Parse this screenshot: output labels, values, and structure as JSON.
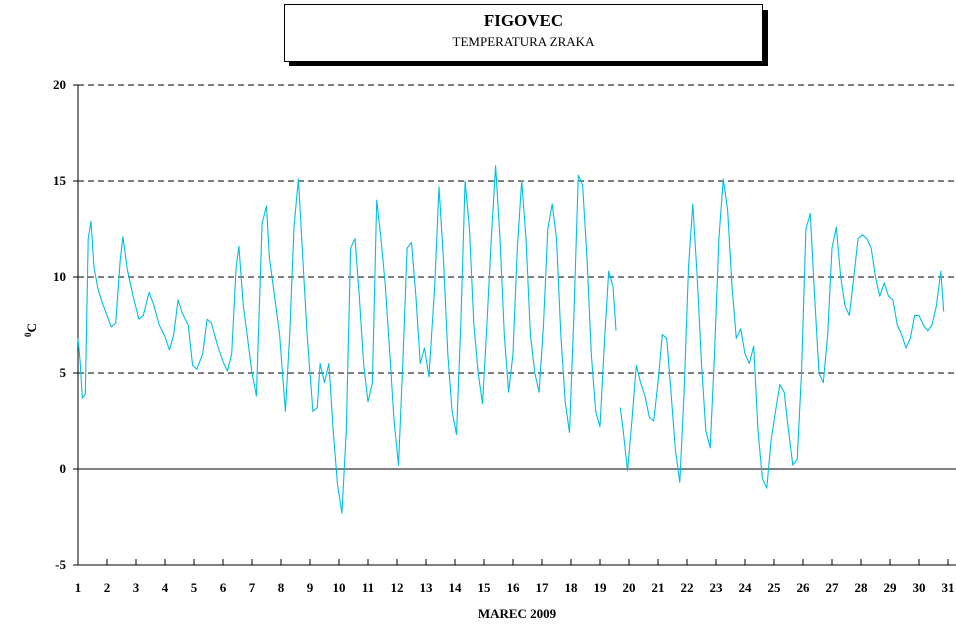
{
  "header": {
    "title": "FIGOVEC",
    "subtitle": "TEMPERATURA ZRAKA"
  },
  "colors": {
    "series": "#00bfe0",
    "grid": "#000000"
  },
  "chart_data": {
    "type": "line",
    "title": "FIGOVEC",
    "subtitle": "TEMPERATURA ZRAKA",
    "xlabel": "MAREC 2009",
    "ylabel_base": "C",
    "ylabel_superscript": "0",
    "ylim": [
      -5,
      20
    ],
    "xlim": [
      1,
      31.7
    ],
    "yticks": [
      "20",
      "15",
      "10",
      "5",
      "0",
      "-5"
    ],
    "xticks": [
      "1",
      "2",
      "3",
      "4",
      "5",
      "6",
      "7",
      "8",
      "9",
      "10",
      "11",
      "12",
      "13",
      "14",
      "15",
      "16",
      "17",
      "18",
      "19",
      "20",
      "21",
      "22",
      "23",
      "24",
      "25",
      "26",
      "27",
      "28",
      "29",
      "30",
      "31"
    ],
    "grid": "dashed horizontal at 5, 10, 15, 20; solid at 0",
    "series": [
      {
        "values": [
          [
            1.0,
            6.8
          ],
          [
            1.08,
            5.5
          ],
          [
            1.15,
            3.7
          ],
          [
            1.25,
            3.9
          ],
          [
            1.35,
            12.0
          ],
          [
            1.45,
            12.9
          ],
          [
            1.55,
            10.5
          ],
          [
            1.7,
            9.3
          ],
          [
            1.85,
            8.6
          ],
          [
            2.0,
            8.0
          ],
          [
            2.15,
            7.4
          ],
          [
            2.3,
            7.6
          ],
          [
            2.45,
            10.8
          ],
          [
            2.55,
            12.1
          ],
          [
            2.7,
            10.4
          ],
          [
            2.9,
            9.0
          ],
          [
            3.1,
            7.8
          ],
          [
            3.25,
            8.0
          ],
          [
            3.45,
            9.2
          ],
          [
            3.6,
            8.6
          ],
          [
            3.8,
            7.5
          ],
          [
            4.0,
            6.9
          ],
          [
            4.15,
            6.2
          ],
          [
            4.3,
            7.0
          ],
          [
            4.45,
            8.8
          ],
          [
            4.6,
            8.1
          ],
          [
            4.8,
            7.5
          ],
          [
            4.95,
            5.4
          ],
          [
            5.1,
            5.2
          ],
          [
            5.3,
            6.0
          ],
          [
            5.45,
            7.8
          ],
          [
            5.6,
            7.6
          ],
          [
            5.8,
            6.5
          ],
          [
            6.0,
            5.6
          ],
          [
            6.15,
            5.1
          ],
          [
            6.3,
            6.0
          ],
          [
            6.45,
            10.5
          ],
          [
            6.55,
            11.6
          ],
          [
            6.7,
            8.5
          ],
          [
            6.85,
            6.8
          ],
          [
            7.0,
            5.0
          ],
          [
            7.15,
            3.8
          ],
          [
            7.35,
            12.8
          ],
          [
            7.5,
            13.7
          ],
          [
            7.6,
            11.0
          ],
          [
            7.75,
            9.3
          ],
          [
            7.95,
            7.0
          ],
          [
            8.15,
            3.0
          ],
          [
            8.3,
            7.0
          ],
          [
            8.45,
            12.6
          ],
          [
            8.6,
            15.1
          ],
          [
            8.75,
            11.0
          ],
          [
            8.9,
            7.0
          ],
          [
            9.1,
            3.0
          ],
          [
            9.25,
            3.2
          ],
          [
            9.35,
            5.5
          ],
          [
            9.5,
            4.5
          ],
          [
            9.65,
            5.5
          ],
          [
            9.8,
            2.0
          ],
          [
            9.95,
            -0.8
          ],
          [
            10.1,
            -2.3
          ],
          [
            10.25,
            2.0
          ],
          [
            10.4,
            11.5
          ],
          [
            10.55,
            12.0
          ],
          [
            10.7,
            9.0
          ],
          [
            10.85,
            5.5
          ],
          [
            11.0,
            3.5
          ],
          [
            11.15,
            4.5
          ],
          [
            11.3,
            14.0
          ],
          [
            11.45,
            12.0
          ],
          [
            11.6,
            9.5
          ],
          [
            11.75,
            6.0
          ],
          [
            11.9,
            2.5
          ],
          [
            12.05,
            0.2
          ],
          [
            12.2,
            5.5
          ],
          [
            12.35,
            11.5
          ],
          [
            12.5,
            11.8
          ],
          [
            12.65,
            9.0
          ],
          [
            12.8,
            5.5
          ],
          [
            12.95,
            6.3
          ],
          [
            13.1,
            4.8
          ],
          [
            13.3,
            9.5
          ],
          [
            13.45,
            14.7
          ],
          [
            13.6,
            11.0
          ],
          [
            13.75,
            6.0
          ],
          [
            13.9,
            3.0
          ],
          [
            14.05,
            1.8
          ],
          [
            14.2,
            7.5
          ],
          [
            14.35,
            15.0
          ],
          [
            14.5,
            12.5
          ],
          [
            14.65,
            7.5
          ],
          [
            14.8,
            5.0
          ],
          [
            14.95,
            3.4
          ],
          [
            15.1,
            7.5
          ],
          [
            15.25,
            12.0
          ],
          [
            15.4,
            15.8
          ],
          [
            15.55,
            12.0
          ],
          [
            15.7,
            7.0
          ],
          [
            15.85,
            4.0
          ],
          [
            16.0,
            6.0
          ],
          [
            16.15,
            11.5
          ],
          [
            16.3,
            15.0
          ],
          [
            16.45,
            12.0
          ],
          [
            16.6,
            7.0
          ],
          [
            16.75,
            5.0
          ],
          [
            16.9,
            4.0
          ],
          [
            17.05,
            7.5
          ],
          [
            17.2,
            12.5
          ],
          [
            17.35,
            13.8
          ],
          [
            17.5,
            12.0
          ],
          [
            17.65,
            7.0
          ],
          [
            17.8,
            3.5
          ],
          [
            17.95,
            1.9
          ],
          [
            18.1,
            8.0
          ],
          [
            18.25,
            15.3
          ],
          [
            18.4,
            14.8
          ],
          [
            18.55,
            11.0
          ],
          [
            18.7,
            6.0
          ],
          [
            18.85,
            3.0
          ],
          [
            19.0,
            2.2
          ],
          [
            19.15,
            6.5
          ],
          [
            19.3,
            10.3
          ],
          [
            19.45,
            9.5
          ],
          [
            19.55,
            7.2
          ],
          [
            null,
            null
          ],
          [
            19.7,
            3.2
          ],
          [
            19.8,
            2.0
          ],
          [
            19.95,
            -0.1
          ],
          [
            20.1,
            2.5
          ],
          [
            20.25,
            5.4
          ],
          [
            20.4,
            4.5
          ],
          [
            20.55,
            3.8
          ],
          [
            20.7,
            2.7
          ],
          [
            20.85,
            2.5
          ],
          [
            21.0,
            4.5
          ],
          [
            21.15,
            7.0
          ],
          [
            21.3,
            6.8
          ],
          [
            21.45,
            4.0
          ],
          [
            21.6,
            1.0
          ],
          [
            21.75,
            -0.7
          ],
          [
            21.9,
            4.0
          ],
          [
            22.05,
            10.5
          ],
          [
            22.2,
            13.8
          ],
          [
            22.35,
            10.0
          ],
          [
            22.5,
            5.5
          ],
          [
            22.65,
            2.0
          ],
          [
            22.8,
            1.1
          ],
          [
            22.95,
            6.0
          ],
          [
            23.1,
            12.0
          ],
          [
            23.25,
            15.1
          ],
          [
            23.4,
            13.5
          ],
          [
            23.55,
            9.5
          ],
          [
            23.7,
            6.8
          ],
          [
            23.85,
            7.3
          ],
          [
            24.0,
            6.0
          ],
          [
            24.15,
            5.5
          ],
          [
            24.3,
            6.4
          ],
          [
            24.45,
            2.0
          ],
          [
            24.6,
            -0.5
          ],
          [
            24.75,
            -1.0
          ],
          [
            24.9,
            1.5
          ],
          [
            25.05,
            3.0
          ],
          [
            25.2,
            4.4
          ],
          [
            25.35,
            4.0
          ],
          [
            25.5,
            2.0
          ],
          [
            25.65,
            0.2
          ],
          [
            25.8,
            0.5
          ],
          [
            25.95,
            5.0
          ],
          [
            26.1,
            12.5
          ],
          [
            26.25,
            13.3
          ],
          [
            26.4,
            9.0
          ],
          [
            26.55,
            5.0
          ],
          [
            26.7,
            4.5
          ],
          [
            26.85,
            7.0
          ],
          [
            27.0,
            11.5
          ],
          [
            27.15,
            12.6
          ],
          [
            27.3,
            10.0
          ],
          [
            27.45,
            8.5
          ],
          [
            27.6,
            8.0
          ],
          [
            27.75,
            10.0
          ],
          [
            27.9,
            12.0
          ],
          [
            28.05,
            12.2
          ],
          [
            28.2,
            12.0
          ],
          [
            28.35,
            11.5
          ],
          [
            28.5,
            10.0
          ],
          [
            28.65,
            9.0
          ],
          [
            28.8,
            9.7
          ],
          [
            28.95,
            9.0
          ],
          [
            29.1,
            8.8
          ],
          [
            29.25,
            7.5
          ],
          [
            29.4,
            7.0
          ],
          [
            29.55,
            6.3
          ],
          [
            29.7,
            6.8
          ],
          [
            29.85,
            8.0
          ],
          [
            30.0,
            8.0
          ],
          [
            30.15,
            7.5
          ],
          [
            30.3,
            7.2
          ],
          [
            30.45,
            7.5
          ],
          [
            30.6,
            8.5
          ],
          [
            30.75,
            10.3
          ],
          [
            30.85,
            8.2
          ]
        ]
      }
    ]
  }
}
